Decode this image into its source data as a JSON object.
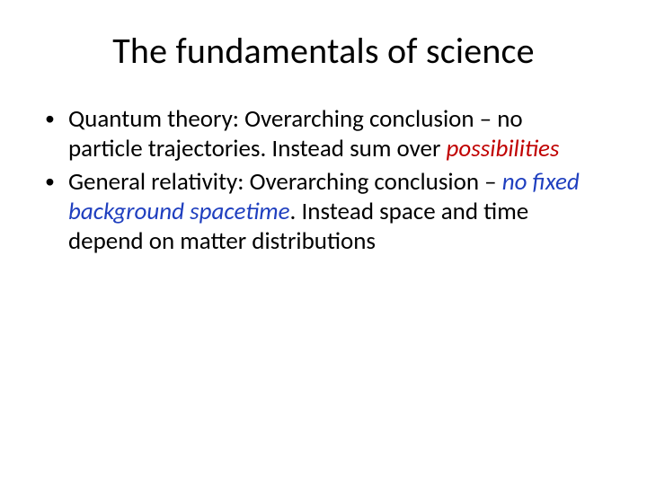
{
  "slide": {
    "title": "The fundamentals of science",
    "bullets": [
      {
        "lead": "Quantum theory: Overarching conclusion – no particle trajectories. Instead sum over ",
        "emph": "possibilities",
        "emph_color": "#c00000",
        "tail": ""
      },
      {
        "lead": "General relativity: Overarching conclusion – ",
        "emph": "no fixed background spacetime",
        "emph_color": "#1f3fbf",
        "tail": ". Instead space and time depend on matter distributions"
      }
    ],
    "title_fontsize": 40,
    "body_fontsize": 27,
    "background_color": "#ffffff",
    "text_color": "#000000"
  }
}
